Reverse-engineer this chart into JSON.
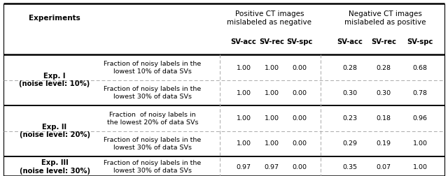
{
  "header_group1": "Positive CT images\nmislabeled as negative",
  "header_group2": "Negative CT images\nmislabeled as positive",
  "header_exp": "Experiments",
  "col_labels": [
    "SV-acc",
    "SV-rec",
    "SV-spc",
    "SV-acc",
    "SV-rec",
    "SV-spc"
  ],
  "rows": [
    {
      "exp_label": "Exp. I\n(noise level: 10%)",
      "sub_rows": [
        {
          "desc": "Fraction of noisy labels in the\nlowest 10% of data SVs",
          "vals": [
            "1.00",
            "1.00",
            "0.00",
            "0.28",
            "0.28",
            "0.68"
          ]
        },
        {
          "desc": "Fraction of noisy labels in the\nlowest 30% of data SVs",
          "vals": [
            "1.00",
            "1.00",
            "0.00",
            "0.30",
            "0.30",
            "0.78"
          ]
        }
      ]
    },
    {
      "exp_label": "Exp. II\n(noise level: 20%)",
      "sub_rows": [
        {
          "desc": "Fraction  of noisy labels in\nthe lowest 20% of data SVs",
          "vals": [
            "1.00",
            "1.00",
            "0.00",
            "0.23",
            "0.18",
            "0.96"
          ]
        },
        {
          "desc": "Fraction of noisy labels in the\nlowest 30% of data SVs",
          "vals": [
            "1.00",
            "1.00",
            "0.00",
            "0.29",
            "0.19",
            "1.00"
          ]
        }
      ]
    },
    {
      "exp_label": "Exp. III\n(noise level: 30%)",
      "sub_rows": [
        {
          "desc": "Fraction of noisy labels in the\nlowest 30% of data SVs",
          "vals": [
            "0.97",
            "0.97",
            "0.00",
            "0.35",
            "0.07",
            "1.00"
          ]
        }
      ]
    }
  ],
  "bg_color": "#ffffff",
  "text_color": "#000000",
  "font_size": 6.8,
  "bold_font_size": 7.2,
  "header_font_size": 7.5
}
